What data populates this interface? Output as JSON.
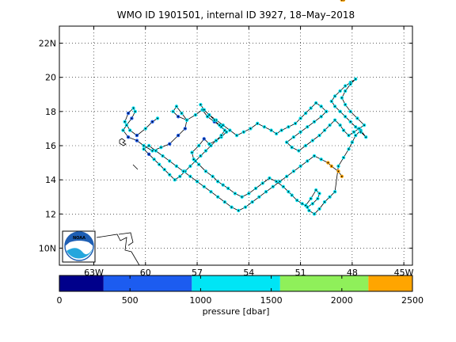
{
  "title": "WMO ID 1901501, internal ID 3927, 18–May–2018",
  "map": {
    "lon_range": [
      -65.0,
      -44.5
    ],
    "lat_range": [
      9.0,
      23.0
    ],
    "lon_ticks": [
      {
        "value": -63,
        "label": "63W"
      },
      {
        "value": -60,
        "label": "60"
      },
      {
        "value": -57,
        "label": "57"
      },
      {
        "value": -54,
        "label": "54"
      },
      {
        "value": -51,
        "label": "51"
      },
      {
        "value": -48,
        "label": "48"
      },
      {
        "value": -45,
        "label": "45W"
      }
    ],
    "lat_ticks": [
      {
        "value": 10,
        "label": "10N"
      },
      {
        "value": 12,
        "label": "12"
      },
      {
        "value": 14,
        "label": "14"
      },
      {
        "value": 16,
        "label": "16"
      },
      {
        "value": 18,
        "label": "18"
      },
      {
        "value": 20,
        "label": "20"
      },
      {
        "value": 22,
        "label": "22N"
      }
    ],
    "grid": true,
    "grid_style": "dotted",
    "land_color": "#000000",
    "track_color": "#000000"
  },
  "colorbar": {
    "label": "pressure [dbar]",
    "range": [
      0,
      2500
    ],
    "tick_values": [
      0,
      500,
      1000,
      1500,
      2000,
      2500
    ],
    "tick_labels": [
      "0",
      "500",
      "1000",
      "1500",
      "2000",
      "2500"
    ],
    "segments": [
      {
        "from": 0,
        "to": 313,
        "color": "#00008b"
      },
      {
        "from": 313,
        "to": 938,
        "color": "#1c5cf0"
      },
      {
        "from": 938,
        "to": 1563,
        "color": "#00e5f5"
      },
      {
        "from": 1563,
        "to": 2188,
        "color": "#8ff05a"
      },
      {
        "from": 2188,
        "to": 2500,
        "color": "#ffa500"
      }
    ]
  },
  "logo": {
    "text": "NOAA",
    "colors": {
      "sky": "#1f5fb4",
      "wave": "#24a6dd",
      "background": "#ffffff"
    }
  },
  "chart_data": {
    "type": "scatter",
    "title": "WMO ID 1901501, internal ID 3927, 18–May–2018",
    "xlabel": "",
    "ylabel": "",
    "colorbar_label": "pressure [dbar]",
    "xlim": [
      -65.0,
      -44.5
    ],
    "ylim": [
      9.0,
      23.0
    ],
    "x_units": "longitude (negative = W)",
    "y_units": "latitude (N)",
    "series": [
      {
        "lon": [
          -59.3,
          -59.6,
          -60.0,
          -60.5,
          -60.9,
          -61.2,
          -61.0,
          -60.7,
          -60.6,
          -60.8,
          -61.1,
          -61.3,
          -61.0,
          -60.5,
          -60.1,
          -59.6,
          -59.1,
          -58.6,
          -58.1,
          -57.7,
          -57.6,
          -57.9,
          -58.2,
          -58.4,
          -58.1,
          -57.6,
          -57.1,
          -56.7,
          -56.4,
          -56.0,
          -55.6,
          -55.3,
          -55.6,
          -55.9,
          -56.3,
          -56.6,
          -56.9,
          -57.3,
          -57.2,
          -56.9,
          -56.5,
          -56.1,
          -55.8,
          -55.5,
          -55.2,
          -54.8,
          -54.4,
          -54.0,
          -53.6,
          -53.2,
          -52.8,
          -52.4,
          -52.0,
          -51.7,
          -51.5,
          -51.2,
          -50.9,
          -50.6,
          -50.3,
          -50.0,
          -49.9,
          -50.1,
          -50.4,
          -50.7,
          -50.5,
          -50.2,
          -49.9,
          -49.6,
          -49.3,
          -49.0,
          -48.8,
          -48.5,
          -48.2,
          -48.0,
          -47.8,
          -47.5,
          -47.2,
          -47.5,
          -47.8,
          -48.1,
          -48.4,
          -48.7,
          -49.0,
          -49.2,
          -49.0,
          -48.7,
          -48.4,
          -48.1,
          -47.8,
          -48.1,
          -48.4,
          -48.6,
          -48.4,
          -48.1,
          -47.7,
          -47.3,
          -47.6,
          -47.9,
          -48.2,
          -48.5,
          -48.7,
          -49.0,
          -49.3,
          -49.6,
          -49.9,
          -50.3,
          -50.7,
          -51.1,
          -51.5,
          -51.8,
          -51.4,
          -51.0,
          -50.6,
          -50.2,
          -49.8,
          -49.5,
          -49.8,
          -50.1,
          -50.4,
          -50.7,
          -51.0,
          -51.3,
          -51.7,
          -52.1,
          -52.4,
          -52.7,
          -53.1,
          -53.5,
          -53.9,
          -54.3,
          -54.7,
          -55.1,
          -55.5,
          -55.9,
          -56.3,
          -56.6,
          -56.8,
          -56.6,
          -56.3,
          -56.0,
          -55.7,
          -55.4,
          -55.6,
          -55.9,
          -56.2,
          -56.5,
          -56.8,
          -57.1,
          -57.4,
          -57.7,
          -58.0,
          -58.3,
          -58.6,
          -58.9,
          -59.2,
          -59.5,
          -59.8,
          -60.1,
          -59.8,
          -59.4,
          -59.0,
          -58.6,
          -58.2,
          -57.8,
          -57.4,
          -57.0,
          -56.6,
          -56.2,
          -55.8,
          -55.4,
          -55.0,
          -54.6,
          -54.2,
          -53.8,
          -53.4,
          -53.0,
          -52.6,
          -52.2,
          -51.8,
          -51.4,
          -51.0,
          -50.6,
          -50.2,
          -49.8,
          -49.4,
          -49.2,
          -48.8,
          -48.6,
          -48.5,
          -48.6
        ],
        "lat": [
          17.6,
          17.4,
          17.0,
          16.6,
          16.9,
          17.4,
          17.9,
          18.2,
          18.0,
          17.6,
          17.2,
          16.9,
          16.5,
          16.3,
          16.0,
          15.7,
          15.9,
          16.1,
          16.6,
          17.0,
          17.5,
          17.9,
          18.3,
          18.0,
          17.7,
          17.5,
          17.8,
          18.1,
          17.7,
          17.4,
          17.1,
          16.8,
          16.5,
          16.3,
          16.1,
          16.4,
          16.0,
          15.6,
          15.2,
          14.9,
          14.5,
          14.2,
          13.9,
          13.7,
          13.5,
          13.2,
          13.0,
          13.2,
          13.5,
          13.8,
          14.1,
          13.9,
          13.6,
          13.3,
          13.1,
          12.8,
          12.6,
          12.4,
          12.6,
          12.9,
          13.2,
          13.4,
          12.9,
          12.5,
          12.2,
          12.0,
          12.3,
          12.7,
          13.0,
          13.3,
          14.8,
          15.3,
          15.8,
          16.2,
          16.6,
          16.9,
          16.5,
          16.8,
          17.1,
          17.4,
          17.7,
          18.0,
          18.3,
          18.6,
          18.9,
          19.2,
          19.5,
          19.7,
          19.9,
          19.6,
          19.2,
          18.8,
          18.4,
          18.0,
          17.6,
          17.2,
          17.0,
          16.8,
          16.6,
          16.9,
          17.2,
          17.5,
          17.2,
          16.9,
          16.6,
          16.3,
          16.0,
          15.7,
          15.9,
          16.2,
          16.5,
          16.8,
          17.1,
          17.4,
          17.7,
          18.0,
          18.3,
          18.5,
          18.2,
          17.9,
          17.6,
          17.3,
          17.1,
          16.9,
          16.7,
          16.9,
          17.1,
          17.3,
          17.0,
          16.8,
          16.6,
          16.9,
          17.2,
          17.5,
          17.8,
          18.1,
          18.4,
          18.1,
          17.8,
          17.5,
          17.2,
          16.9,
          16.6,
          16.3,
          16.0,
          15.7,
          15.4,
          15.1,
          14.8,
          14.5,
          14.2,
          14.0,
          14.3,
          14.6,
          14.9,
          15.2,
          15.5,
          15.8,
          16.0,
          15.7,
          15.4,
          15.1,
          14.8,
          14.5,
          14.2,
          13.9,
          13.6,
          13.3,
          13.0,
          12.7,
          12.4,
          12.2,
          12.4,
          12.7,
          13.0,
          13.3,
          13.6,
          13.9,
          14.2,
          14.5,
          14.8,
          15.1,
          15.4,
          15.2,
          15.0,
          14.8,
          14.5,
          14.2
        ],
        "pressure_dbar": [
          1000,
          700,
          1000,
          700,
          1000,
          1000,
          700,
          1000,
          1000,
          700,
          1000,
          1000,
          700,
          700,
          1000,
          1000,
          1000,
          700,
          700,
          700,
          1000,
          1000,
          1000,
          1000,
          700,
          1000,
          1000,
          1000,
          1000,
          700,
          1000,
          1000,
          1000,
          1000,
          1000,
          700,
          1000,
          1000,
          1000,
          1000,
          1000,
          1000,
          1000,
          1000,
          1000,
          1000,
          1000,
          1000,
          1000,
          1000,
          1000,
          1000,
          1000,
          1000,
          1000,
          1000,
          1000,
          1000,
          1000,
          1000,
          1000,
          1000,
          1000,
          1000,
          1000,
          1000,
          1000,
          1000,
          1000,
          1000,
          1000,
          1000,
          1000,
          1000,
          1000,
          1000,
          1000,
          1000,
          1000,
          1000,
          1000,
          1000,
          1000,
          1000,
          1000,
          1000,
          1000,
          1000,
          1000,
          1000,
          1000,
          1000,
          1000,
          1000,
          1000,
          1000,
          1000,
          1000,
          1000,
          1000,
          1000,
          1000,
          1000,
          1000,
          1000,
          1000,
          1000,
          1000,
          1000,
          1000,
          1000,
          1000,
          1000,
          1000,
          1000,
          1000,
          1000,
          1000,
          1000,
          1000,
          1000,
          1000,
          1000,
          1000,
          1000,
          1000,
          1000,
          1000,
          1000,
          1000,
          1000,
          1000,
          1000,
          1000,
          700,
          1000,
          1000,
          1000,
          1000,
          1000,
          1000,
          1000,
          1000,
          1000,
          1000,
          1000,
          1000,
          1000,
          1000,
          1000,
          1000,
          1000,
          1000,
          1000,
          1000,
          1000,
          700,
          1000,
          1000,
          1000,
          1000,
          1000,
          1000,
          1000,
          1000,
          1000,
          1000,
          1000,
          1000,
          1000,
          1000,
          1000,
          1000,
          1000,
          1000,
          1000,
          1000,
          1000,
          1000,
          1000,
          1000,
          1000,
          1000,
          1000
        ]
      }
    ]
  }
}
